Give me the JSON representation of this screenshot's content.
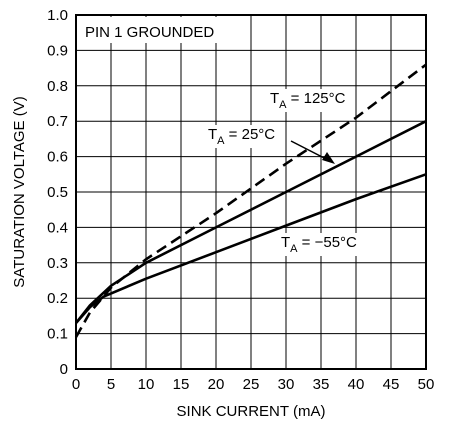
{
  "chart_data": {
    "type": "line",
    "title": "",
    "xlabel": "SINK CURRENT (mA)",
    "ylabel": "SATURATION VOLTAGE (V)",
    "xlim": [
      0,
      50
    ],
    "ylim": [
      0,
      1.0
    ],
    "x_ticks": [
      0,
      5,
      10,
      15,
      20,
      25,
      30,
      35,
      40,
      45,
      50
    ],
    "y_ticks": [
      0,
      0.1,
      0.2,
      0.3,
      0.4,
      0.5,
      0.6,
      0.7,
      0.8,
      0.9,
      1.0
    ],
    "x_tick_labels": [
      "0",
      "5",
      "10",
      "15",
      "20",
      "25",
      "30",
      "35",
      "40",
      "45",
      "50"
    ],
    "y_tick_labels": [
      "0",
      "0.1",
      "0.2",
      "0.3",
      "0.4",
      "0.5",
      "0.6",
      "0.7",
      "0.8",
      "0.9",
      "1.0"
    ],
    "grid": true,
    "annotation_box": "PIN 1 GROUNDED",
    "series": [
      {
        "name": "TA = 125°C",
        "label_main": "T",
        "label_sub": "A",
        "label_rest": " = 125°C",
        "style": "dashed",
        "color": "#000000",
        "x": [
          0,
          2,
          5,
          10,
          20,
          30,
          40,
          50
        ],
        "y": [
          0.09,
          0.16,
          0.23,
          0.31,
          0.44,
          0.58,
          0.71,
          0.86
        ]
      },
      {
        "name": "TA = 25°C",
        "label_main": "T",
        "label_sub": "A",
        "label_rest": " = 25°C",
        "style": "solid",
        "color": "#000000",
        "x": [
          0,
          2,
          5,
          10,
          20,
          30,
          40,
          50
        ],
        "y": [
          0.13,
          0.18,
          0.235,
          0.3,
          0.4,
          0.5,
          0.6,
          0.7
        ]
      },
      {
        "name": "TA = −55°C",
        "label_main": "T",
        "label_sub": "A",
        "label_rest": " = −55°C",
        "style": "solid",
        "color": "#000000",
        "x": [
          0,
          2,
          4,
          10,
          20,
          30,
          40,
          50
        ],
        "y": [
          0.13,
          0.175,
          0.205,
          0.255,
          0.33,
          0.405,
          0.48,
          0.55
        ]
      }
    ]
  }
}
